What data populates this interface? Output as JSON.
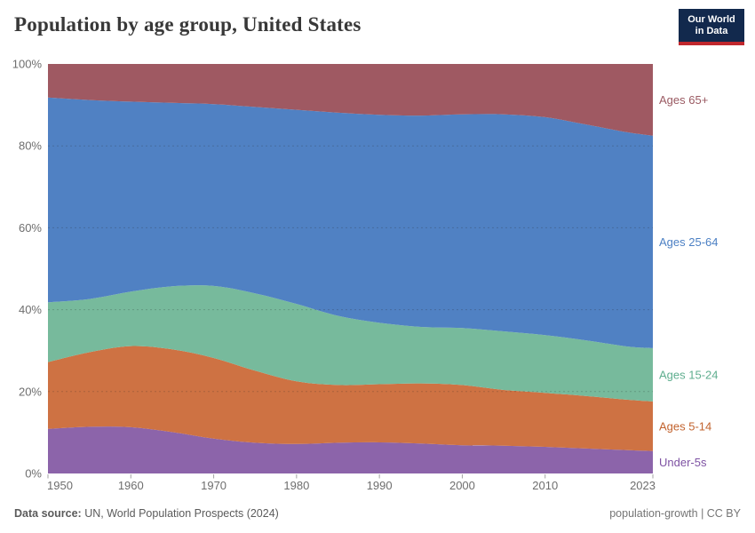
{
  "header": {
    "title": "Population by age group, United States",
    "logo": {
      "line1": "Our World",
      "line2": "in Data"
    }
  },
  "chart_data": {
    "type": "area",
    "stacked": true,
    "relative": true,
    "title": "Population by age group, United States",
    "xlabel": "",
    "ylabel": "",
    "xlim": [
      1950,
      2023
    ],
    "ylim": [
      0,
      100
    ],
    "grid": true,
    "legend_position": "right",
    "x": [
      1950,
      1955,
      1960,
      1965,
      1970,
      1975,
      1980,
      1985,
      1990,
      1995,
      2000,
      2005,
      2010,
      2015,
      2020,
      2023
    ],
    "series": [
      {
        "name": "Under-5s",
        "color": "#8c64aa",
        "label_color": "#7e52a3",
        "values": [
          10.9,
          11.4,
          11.3,
          10.1,
          8.5,
          7.5,
          7.2,
          7.5,
          7.6,
          7.3,
          6.9,
          6.8,
          6.5,
          6.1,
          5.7,
          5.5
        ]
      },
      {
        "name": "Ages 5-14",
        "color": "#ce7243",
        "label_color": "#c2632e",
        "values": [
          16.3,
          18.2,
          19.8,
          20.2,
          19.7,
          17.6,
          15.3,
          14.1,
          14.2,
          14.7,
          14.7,
          13.6,
          13.2,
          12.8,
          12.3,
          12.1
        ]
      },
      {
        "name": "Ages 15-24",
        "color": "#77ba9c",
        "label_color": "#5fae8f",
        "values": [
          14.6,
          13.0,
          13.3,
          15.4,
          17.6,
          18.9,
          18.9,
          16.9,
          15.0,
          13.8,
          13.9,
          14.3,
          14.1,
          13.6,
          13.0,
          13.0
        ]
      },
      {
        "name": "Ages 25-64",
        "color": "#5081c3",
        "label_color": "#4c80c4",
        "values": [
          50.0,
          48.6,
          46.4,
          44.8,
          44.4,
          45.5,
          47.4,
          49.6,
          50.8,
          51.6,
          52.2,
          53.0,
          53.2,
          52.7,
          52.3,
          51.9
        ]
      },
      {
        "name": "Ages 65+",
        "color": "#9f5962",
        "label_color": "#9a5a62",
        "values": [
          8.2,
          8.8,
          9.2,
          9.5,
          9.8,
          10.5,
          11.2,
          11.9,
          12.4,
          12.6,
          12.3,
          12.3,
          13.0,
          14.8,
          16.7,
          17.5
        ]
      }
    ],
    "yticks": {
      "values": [
        0,
        20,
        40,
        60,
        80,
        100
      ],
      "labels": [
        "0%",
        "20%",
        "40%",
        "60%",
        "80%",
        "100%"
      ]
    },
    "xticks": {
      "values": [
        1950,
        1960,
        1970,
        1980,
        1990,
        2000,
        2010,
        2023
      ],
      "labels": [
        "1950",
        "1960",
        "1970",
        "1980",
        "1990",
        "2000",
        "2010",
        "2023"
      ]
    },
    "axis_text_color": "#6e6e6e",
    "tick_mark_color": "#a3a3a3",
    "gridline_color": "#252525"
  },
  "footer": {
    "source_label": "Data source:",
    "source_value": " UN, World Population Prospects (2024)",
    "credit": "population-growth | CC BY"
  }
}
